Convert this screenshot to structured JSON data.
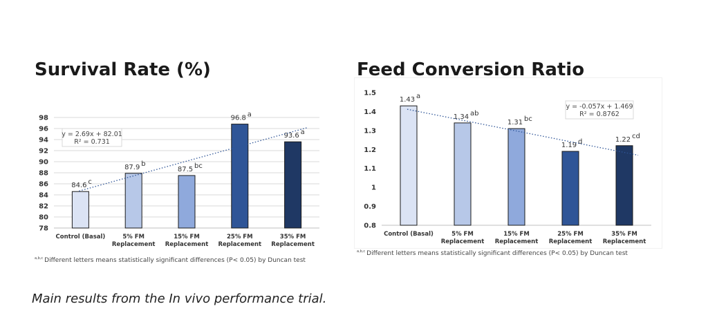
{
  "caption": "Main results from the In vivo performance trial.",
  "footnote": {
    "superscript": "a,b,c",
    "text": "Different letters means statistically significant differences (P< 0.05) by Duncan test"
  },
  "colors": {
    "bar_1": "#dbe3f4",
    "bar_2": "#b7c8e8",
    "bar_3": "#8fa9dc",
    "bar_4": "#2f5597",
    "bar_5": "#1f3864",
    "trend": "#2f5597",
    "grid": "#d9d9d9"
  },
  "chart_data": [
    {
      "type": "bar",
      "title": "Survival Rate (%)",
      "categories": [
        [
          "Control (Basal)"
        ],
        [
          "5% FM",
          "Replacement"
        ],
        [
          "15% FM",
          "Replacement"
        ],
        [
          "25% FM",
          "Replacement"
        ],
        [
          "35% FM",
          "Replacement"
        ]
      ],
      "values": [
        84.6,
        87.9,
        87.5,
        96.8,
        93.6
      ],
      "value_labels": [
        "84.6",
        "87.9",
        "87.5",
        "96.8",
        "93.6"
      ],
      "significance_letters": [
        "c",
        "b",
        "bc",
        "a",
        "a"
      ],
      "ylim": [
        78,
        98
      ],
      "yticks": [
        78,
        80,
        82,
        84,
        86,
        88,
        90,
        92,
        94,
        96,
        98
      ],
      "ytick_labels": [
        "78",
        "80",
        "82",
        "84",
        "86",
        "88",
        "90",
        "92",
        "94",
        "96",
        "98"
      ],
      "grid": true,
      "trendline": {
        "slope": 2.69,
        "intercept": 82.01,
        "equation": "y = 2.69x + 82.01",
        "r2": "R² = 0.731"
      }
    },
    {
      "type": "bar",
      "title": "Feed Conversion Ratio",
      "categories": [
        [
          "Control (Basal)"
        ],
        [
          "5% FM",
          "Replacement"
        ],
        [
          "15% FM",
          "Replacement"
        ],
        [
          "25% FM",
          "Replacement"
        ],
        [
          "35% FM",
          "Replacement"
        ]
      ],
      "values": [
        1.43,
        1.34,
        1.31,
        1.19,
        1.22
      ],
      "value_labels": [
        "1.43",
        "1.34",
        "1.31",
        "1.19",
        "1.22"
      ],
      "significance_letters": [
        "a",
        "ab",
        "bc",
        "d",
        "cd"
      ],
      "ylim": [
        0.8,
        1.5
      ],
      "yticks": [
        0.8,
        0.9,
        1.0,
        1.1,
        1.2,
        1.3,
        1.4,
        1.5
      ],
      "ytick_labels": [
        "0.8",
        "0.9",
        "1",
        "1.1",
        "1.2",
        "1.3",
        "1.4",
        "1.5"
      ],
      "grid": false,
      "trendline": {
        "slope": -0.057,
        "intercept": 1.469,
        "equation": "y = -0.057x + 1.469",
        "r2": "R² = 0.8762"
      }
    }
  ]
}
